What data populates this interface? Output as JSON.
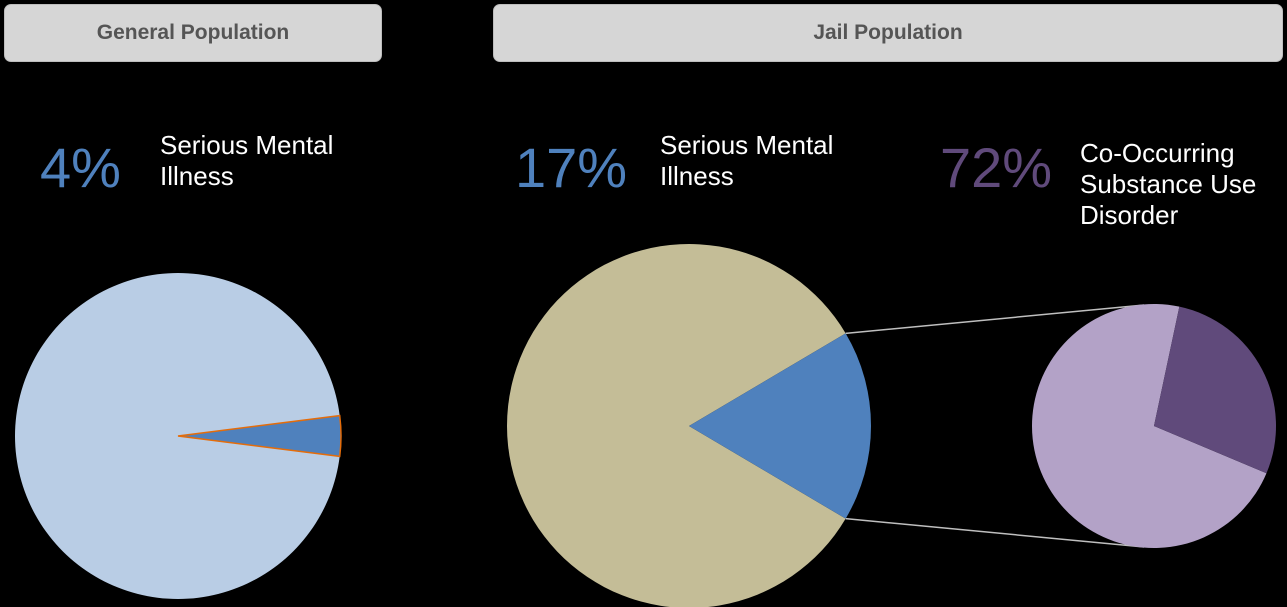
{
  "headers": {
    "general": "General Population",
    "jail": "Jail Population"
  },
  "callouts": {
    "general": {
      "percent": "4%",
      "text": "Serious Mental Illness"
    },
    "jail": {
      "percent": "17%",
      "text": "Serious Mental Illness"
    },
    "cooccurring": {
      "percent": "72%",
      "text": "Co-Occurring Substance Use Disorder"
    }
  },
  "colors": {
    "smi_text": "#4f81bd",
    "cooc_text": "#604a7b",
    "general_rest": "#b9cde5",
    "smi_slice": "#4f81bd",
    "jail_rest": "#c4bd97",
    "cooc_light": "#b3a2c7",
    "cooc_dark": "#604a7b",
    "connector": "#bfbfbf",
    "slice_outline": "#e46c0a"
  },
  "chart_data": [
    {
      "type": "pie",
      "title": "General Population",
      "slices": [
        {
          "label": "Serious Mental Illness",
          "value": 4
        },
        {
          "label": "",
          "value": 96
        }
      ]
    },
    {
      "type": "pie",
      "title": "Jail Population",
      "slices": [
        {
          "label": "Serious Mental Illness",
          "value": 17
        },
        {
          "label": "",
          "value": 83
        }
      ]
    },
    {
      "type": "pie",
      "title": "",
      "slices": [
        {
          "label": "Co-Occurring Substance Use Disorder",
          "value": 72
        },
        {
          "label": "",
          "value": 28
        }
      ]
    }
  ]
}
